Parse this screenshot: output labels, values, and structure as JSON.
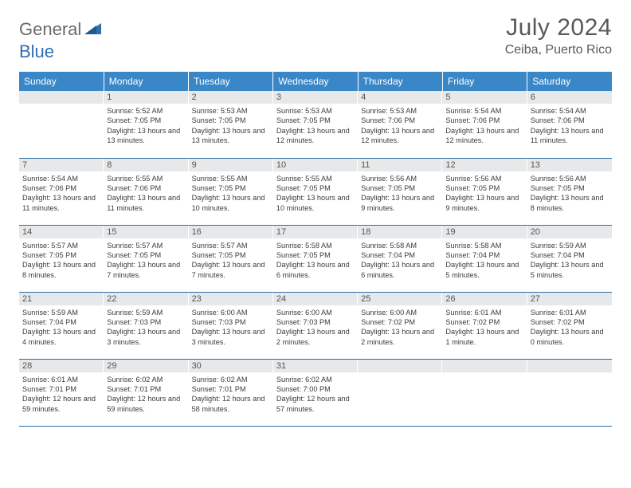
{
  "brand": {
    "word1": "General",
    "word2": "Blue"
  },
  "title": "July 2024",
  "location": "Ceiba, Puerto Rico",
  "header_bg": "#3a87c8",
  "row_divider": "#2d6fa8",
  "daynum_bg": "#e7e8e9",
  "weekdays": [
    "Sunday",
    "Monday",
    "Tuesday",
    "Wednesday",
    "Thursday",
    "Friday",
    "Saturday"
  ],
  "first_weekday_index": 1,
  "days": [
    {
      "n": 1,
      "sunrise": "5:52 AM",
      "sunset": "7:05 PM",
      "daylight": "13 hours and 13 minutes."
    },
    {
      "n": 2,
      "sunrise": "5:53 AM",
      "sunset": "7:05 PM",
      "daylight": "13 hours and 13 minutes."
    },
    {
      "n": 3,
      "sunrise": "5:53 AM",
      "sunset": "7:05 PM",
      "daylight": "13 hours and 12 minutes."
    },
    {
      "n": 4,
      "sunrise": "5:53 AM",
      "sunset": "7:06 PM",
      "daylight": "13 hours and 12 minutes."
    },
    {
      "n": 5,
      "sunrise": "5:54 AM",
      "sunset": "7:06 PM",
      "daylight": "13 hours and 12 minutes."
    },
    {
      "n": 6,
      "sunrise": "5:54 AM",
      "sunset": "7:06 PM",
      "daylight": "13 hours and 11 minutes."
    },
    {
      "n": 7,
      "sunrise": "5:54 AM",
      "sunset": "7:06 PM",
      "daylight": "13 hours and 11 minutes."
    },
    {
      "n": 8,
      "sunrise": "5:55 AM",
      "sunset": "7:06 PM",
      "daylight": "13 hours and 11 minutes."
    },
    {
      "n": 9,
      "sunrise": "5:55 AM",
      "sunset": "7:05 PM",
      "daylight": "13 hours and 10 minutes."
    },
    {
      "n": 10,
      "sunrise": "5:55 AM",
      "sunset": "7:05 PM",
      "daylight": "13 hours and 10 minutes."
    },
    {
      "n": 11,
      "sunrise": "5:56 AM",
      "sunset": "7:05 PM",
      "daylight": "13 hours and 9 minutes."
    },
    {
      "n": 12,
      "sunrise": "5:56 AM",
      "sunset": "7:05 PM",
      "daylight": "13 hours and 9 minutes."
    },
    {
      "n": 13,
      "sunrise": "5:56 AM",
      "sunset": "7:05 PM",
      "daylight": "13 hours and 8 minutes."
    },
    {
      "n": 14,
      "sunrise": "5:57 AM",
      "sunset": "7:05 PM",
      "daylight": "13 hours and 8 minutes."
    },
    {
      "n": 15,
      "sunrise": "5:57 AM",
      "sunset": "7:05 PM",
      "daylight": "13 hours and 7 minutes."
    },
    {
      "n": 16,
      "sunrise": "5:57 AM",
      "sunset": "7:05 PM",
      "daylight": "13 hours and 7 minutes."
    },
    {
      "n": 17,
      "sunrise": "5:58 AM",
      "sunset": "7:05 PM",
      "daylight": "13 hours and 6 minutes."
    },
    {
      "n": 18,
      "sunrise": "5:58 AM",
      "sunset": "7:04 PM",
      "daylight": "13 hours and 6 minutes."
    },
    {
      "n": 19,
      "sunrise": "5:58 AM",
      "sunset": "7:04 PM",
      "daylight": "13 hours and 5 minutes."
    },
    {
      "n": 20,
      "sunrise": "5:59 AM",
      "sunset": "7:04 PM",
      "daylight": "13 hours and 5 minutes."
    },
    {
      "n": 21,
      "sunrise": "5:59 AM",
      "sunset": "7:04 PM",
      "daylight": "13 hours and 4 minutes."
    },
    {
      "n": 22,
      "sunrise": "5:59 AM",
      "sunset": "7:03 PM",
      "daylight": "13 hours and 3 minutes."
    },
    {
      "n": 23,
      "sunrise": "6:00 AM",
      "sunset": "7:03 PM",
      "daylight": "13 hours and 3 minutes."
    },
    {
      "n": 24,
      "sunrise": "6:00 AM",
      "sunset": "7:03 PM",
      "daylight": "13 hours and 2 minutes."
    },
    {
      "n": 25,
      "sunrise": "6:00 AM",
      "sunset": "7:02 PM",
      "daylight": "13 hours and 2 minutes."
    },
    {
      "n": 26,
      "sunrise": "6:01 AM",
      "sunset": "7:02 PM",
      "daylight": "13 hours and 1 minute."
    },
    {
      "n": 27,
      "sunrise": "6:01 AM",
      "sunset": "7:02 PM",
      "daylight": "13 hours and 0 minutes."
    },
    {
      "n": 28,
      "sunrise": "6:01 AM",
      "sunset": "7:01 PM",
      "daylight": "12 hours and 59 minutes."
    },
    {
      "n": 29,
      "sunrise": "6:02 AM",
      "sunset": "7:01 PM",
      "daylight": "12 hours and 59 minutes."
    },
    {
      "n": 30,
      "sunrise": "6:02 AM",
      "sunset": "7:01 PM",
      "daylight": "12 hours and 58 minutes."
    },
    {
      "n": 31,
      "sunrise": "6:02 AM",
      "sunset": "7:00 PM",
      "daylight": "12 hours and 57 minutes."
    }
  ],
  "labels": {
    "sunrise": "Sunrise:",
    "sunset": "Sunset:",
    "daylight": "Daylight:"
  }
}
